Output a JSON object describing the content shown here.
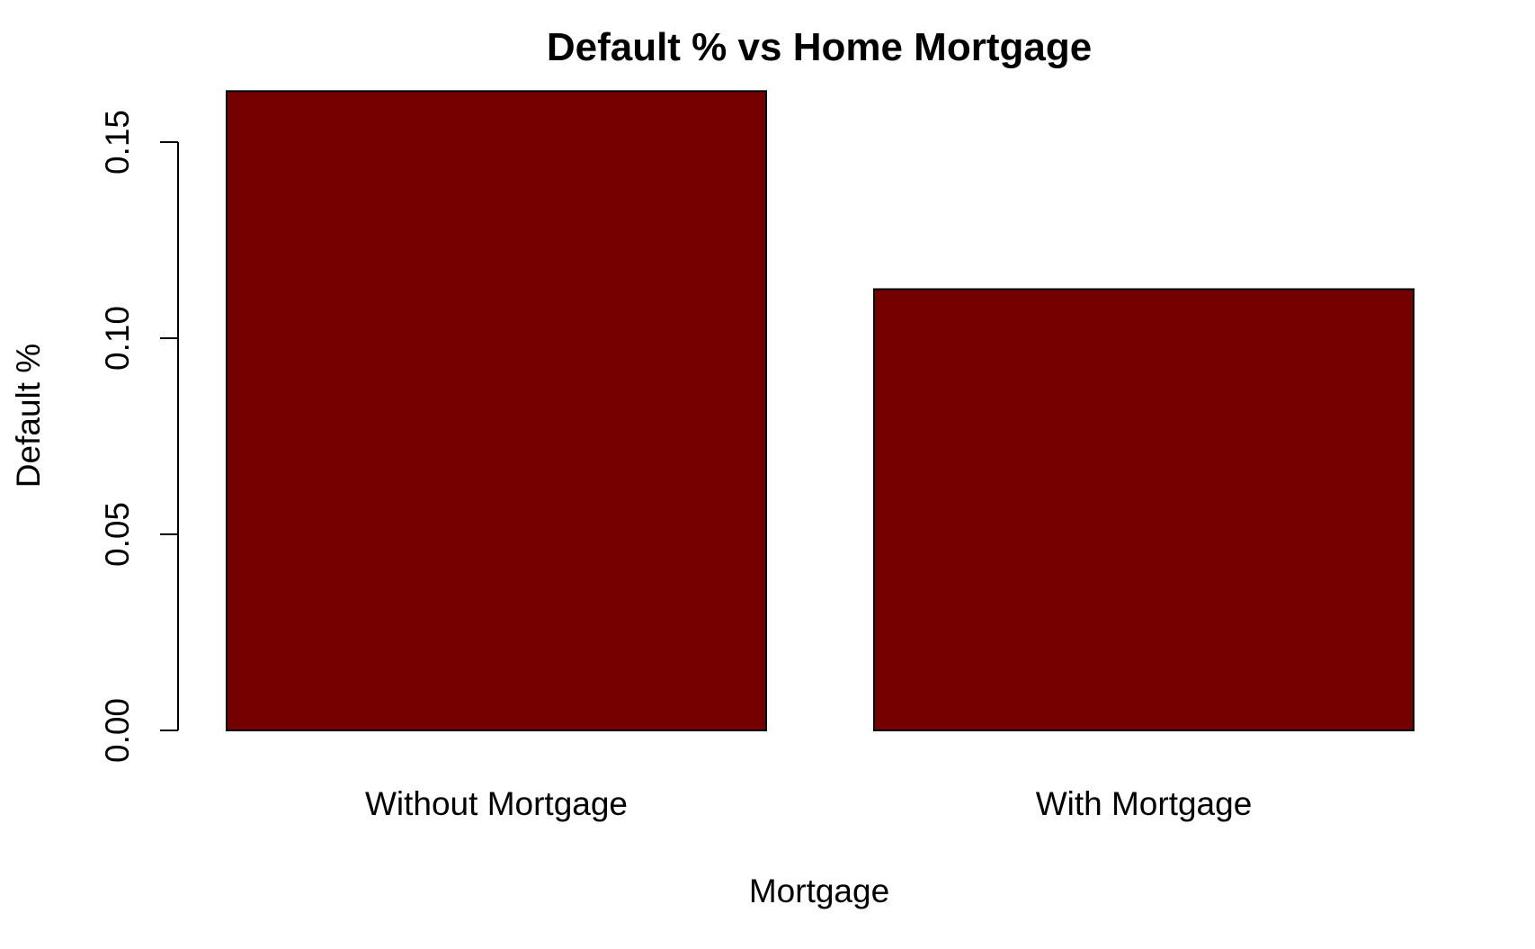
{
  "chart_data": {
    "type": "bar",
    "title": "Default % vs Home Mortgage",
    "xlabel": "Mortgage",
    "ylabel": "Default %",
    "categories": [
      "Without Mortgage",
      "With Mortgage"
    ],
    "values": [
      0.163,
      0.1125
    ],
    "ylim": [
      0,
      0.15
    ],
    "yticks": [
      0.0,
      0.05,
      0.1,
      0.15
    ],
    "ytick_labels": [
      "0.00",
      "0.05",
      "0.10",
      "0.15"
    ],
    "grid": false,
    "legend": "none",
    "bar_color": "#750000",
    "bar_edge_color": "#000000"
  }
}
